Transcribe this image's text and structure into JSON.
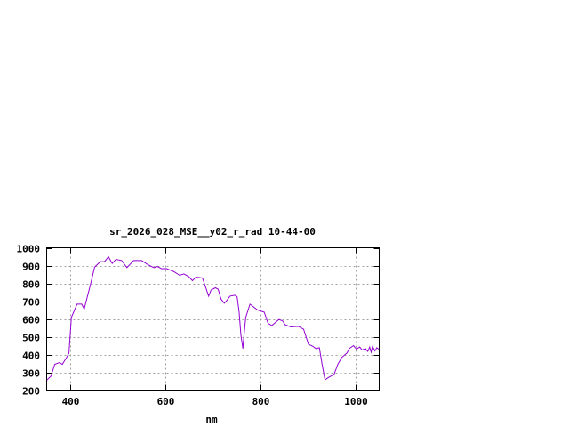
{
  "chart_data": {
    "type": "line",
    "title": "sr_2026_028_MSE__y02_r_rad 10-44-00",
    "xlabel": "nm",
    "ylabel": "",
    "xlim": [
      350,
      1050
    ],
    "ylim": [
      200,
      1000
    ],
    "xticks": [
      400,
      600,
      800,
      1000
    ],
    "yticks": [
      200,
      300,
      400,
      500,
      600,
      700,
      800,
      900,
      1000
    ],
    "grid": true,
    "line_color": "#9400d3",
    "series": [
      {
        "x": [
          350,
          359,
          367,
          377,
          383,
          392,
          397,
          402,
          414,
          424,
          429,
          442,
          451,
          463,
          472,
          480,
          488,
          496,
          508,
          519,
          533,
          550,
          563,
          576,
          583,
          592,
          602,
          617,
          630,
          639,
          649,
          657,
          664,
          678,
          683,
          691,
          696,
          705,
          711,
          717,
          724,
          728,
          736,
          746,
          751,
          755,
          759,
          763,
          764,
          769,
          778,
          786,
          794,
          808,
          816,
          824,
          839,
          847,
          852,
          864,
          880,
          891,
          901,
          911,
          917,
          924,
          930,
          936,
          944,
          955,
          963,
          971,
          982,
          987,
          996,
          1002,
          1009,
          1014,
          1021,
          1026,
          1030,
          1033,
          1036,
          1041,
          1045,
          1050
        ],
        "y": [
          255,
          278,
          345,
          355,
          345,
          383,
          408,
          608,
          683,
          683,
          655,
          792,
          892,
          922,
          922,
          950,
          912,
          935,
          928,
          888,
          928,
          928,
          905,
          888,
          895,
          882,
          883,
          867,
          845,
          853,
          838,
          815,
          835,
          830,
          792,
          728,
          762,
          775,
          767,
          712,
          688,
          700,
          728,
          733,
          725,
          642,
          508,
          433,
          467,
          608,
          683,
          667,
          650,
          638,
          575,
          563,
          597,
          588,
          567,
          555,
          558,
          542,
          458,
          445,
          433,
          438,
          342,
          258,
          272,
          288,
          345,
          383,
          408,
          433,
          450,
          430,
          442,
          425,
          433,
          417,
          442,
          413,
          445,
          420,
          438,
          428
        ]
      }
    ]
  }
}
